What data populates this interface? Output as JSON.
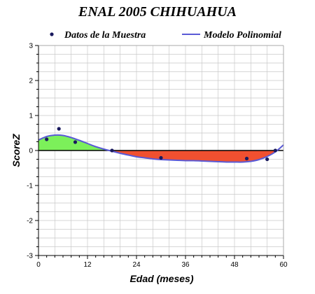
{
  "chart_data": {
    "type": "line",
    "title": "ENAL 2005 CHIHUAHUA",
    "xlabel": "Edad (meses)",
    "ylabel": "ScoreZ",
    "xlim": [
      0,
      60
    ],
    "ylim": [
      -3,
      3
    ],
    "xticks": [
      "0",
      "12",
      "24",
      "36",
      "48",
      "60"
    ],
    "yticks": [
      "3",
      "2",
      "1",
      "0",
      "-1",
      "-2",
      "-3"
    ],
    "grid": true,
    "legend_position": "top",
    "colors": {
      "sample_points": "#1a1a5e",
      "model_line": "#5a5ad6",
      "positive_fill": "#7cf05a",
      "negative_fill": "#f05030",
      "grid": "#c8c8c8"
    },
    "series": [
      {
        "name": "Datos de la Muestra",
        "kind": "scatter",
        "x": [
          2,
          5,
          9,
          18,
          30,
          51,
          56,
          58
        ],
        "y": [
          0.32,
          0.62,
          0.24,
          0.0,
          -0.21,
          -0.23,
          -0.25,
          0.0
        ]
      },
      {
        "name": "Modelo Polinomial",
        "kind": "line",
        "x": [
          0,
          2,
          4,
          6,
          8,
          10,
          12,
          14,
          16,
          18,
          20,
          22,
          24,
          26,
          28,
          30,
          32,
          34,
          36,
          38,
          40,
          42,
          44,
          46,
          48,
          50,
          52,
          54,
          56,
          58,
          60
        ],
        "y": [
          0.3,
          0.4,
          0.44,
          0.43,
          0.37,
          0.29,
          0.2,
          0.11,
          0.04,
          -0.02,
          -0.08,
          -0.13,
          -0.18,
          -0.21,
          -0.24,
          -0.26,
          -0.27,
          -0.28,
          -0.29,
          -0.29,
          -0.3,
          -0.31,
          -0.32,
          -0.33,
          -0.33,
          -0.33,
          -0.31,
          -0.26,
          -0.17,
          -0.04,
          0.16
        ]
      }
    ]
  }
}
